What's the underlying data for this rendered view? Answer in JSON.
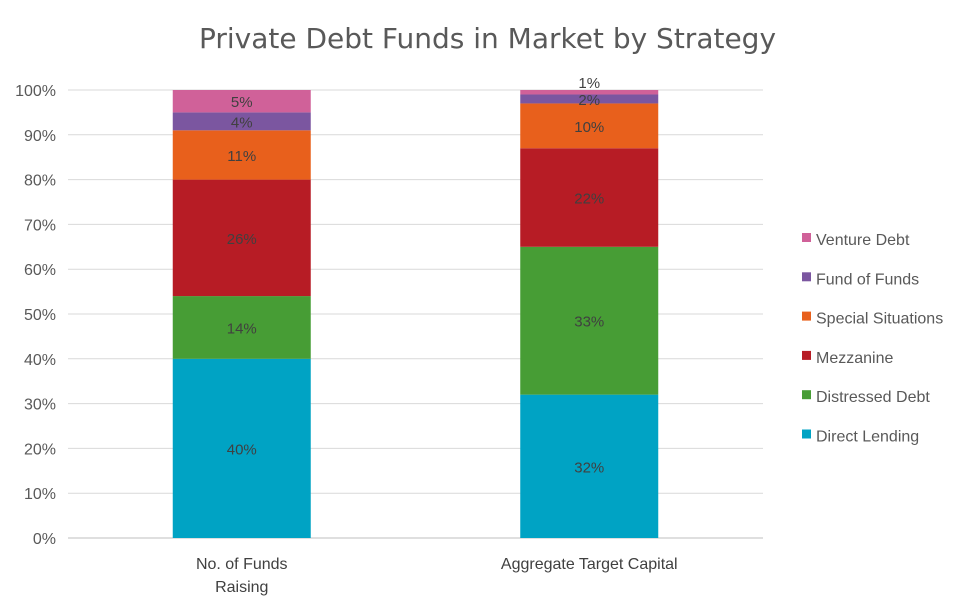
{
  "chart_data": {
    "type": "bar",
    "stacked": true,
    "percent": true,
    "title": "Private Debt Funds in Market by Strategy",
    "categories": [
      "No. of Funds Raising",
      "Aggregate Target Capital"
    ],
    "category_lines": [
      [
        "No. of Funds",
        "Raising"
      ],
      [
        "Aggregate Target Capital"
      ]
    ],
    "ylim": [
      0,
      100
    ],
    "yticks": [
      "0%",
      "10%",
      "20%",
      "30%",
      "40%",
      "50%",
      "60%",
      "70%",
      "80%",
      "90%",
      "100%"
    ],
    "grid": true,
    "legend_position": "right",
    "series": [
      {
        "name": "Direct Lending",
        "color": "#00A3C4",
        "values": [
          40,
          32
        ],
        "labels": [
          "40%",
          "32%"
        ]
      },
      {
        "name": "Distressed Debt",
        "color": "#479D35",
        "values": [
          14,
          33
        ],
        "labels": [
          "14%",
          "33%"
        ]
      },
      {
        "name": "Mezzanine",
        "color": "#B71C25",
        "values": [
          26,
          22
        ],
        "labels": [
          "26%",
          "22%"
        ]
      },
      {
        "name": "Special Situations",
        "color": "#E8601C",
        "values": [
          11,
          10
        ],
        "labels": [
          "11%",
          "10%"
        ]
      },
      {
        "name": "Fund of Funds",
        "color": "#7B56A0",
        "values": [
          4,
          2
        ],
        "labels": [
          "4%",
          "2%"
        ]
      },
      {
        "name": "Venture Debt",
        "color": "#D06199",
        "values": [
          5,
          1
        ],
        "labels": [
          "5%",
          "1%"
        ]
      }
    ]
  }
}
